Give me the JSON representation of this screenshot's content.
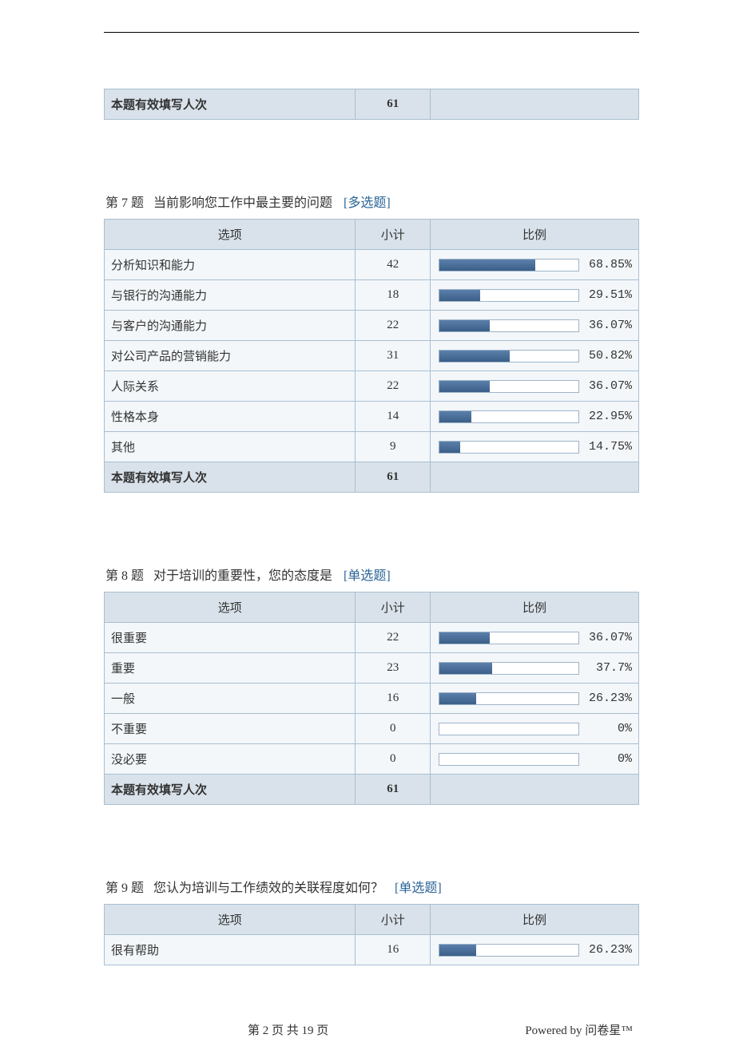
{
  "colors": {
    "header_bg": "#d9e2ea",
    "row_bg": "#f3f7fa",
    "border": "#a9bed1",
    "bar_fill_from": "#5a7fab",
    "bar_fill_to": "#3b5f87",
    "bar_track_border": "#9fb4c8",
    "link": "#2a6496",
    "text": "#333333"
  },
  "labels": {
    "col_option": "选项",
    "col_subtotal": "小计",
    "col_ratio": "比例",
    "valid_count_label": "本题有效填写人次",
    "page_info": "第 2 页 共 19 页",
    "powered_by": "Powered by 问卷星™"
  },
  "top_footer": {
    "label": "本题有效填写人次",
    "value": "61"
  },
  "questions": [
    {
      "id": "q7",
      "number": "第 7 题",
      "title": "当前影响您工作中最主要的问题",
      "type_label": "[多选题]",
      "valid_count": "61",
      "rows": [
        {
          "label": "分析知识和能力",
          "count": "42",
          "percent": 68.85,
          "percent_label": "68.85%"
        },
        {
          "label": "与银行的沟通能力",
          "count": "18",
          "percent": 29.51,
          "percent_label": "29.51%"
        },
        {
          "label": "与客户的沟通能力",
          "count": "22",
          "percent": 36.07,
          "percent_label": "36.07%"
        },
        {
          "label": "对公司产品的营销能力",
          "count": "31",
          "percent": 50.82,
          "percent_label": "50.82%"
        },
        {
          "label": "人际关系",
          "count": "22",
          "percent": 36.07,
          "percent_label": "36.07%"
        },
        {
          "label": "性格本身",
          "count": "14",
          "percent": 22.95,
          "percent_label": "22.95%"
        },
        {
          "label": "其他",
          "count": "9",
          "percent": 14.75,
          "percent_label": "14.75%"
        }
      ]
    },
    {
      "id": "q8",
      "number": "第 8 题",
      "title": "对于培训的重要性，您的态度是",
      "type_label": "[单选题]",
      "valid_count": "61",
      "rows": [
        {
          "label": "很重要",
          "count": "22",
          "percent": 36.07,
          "percent_label": "36.07%"
        },
        {
          "label": "重要",
          "count": "23",
          "percent": 37.7,
          "percent_label": "37.7%"
        },
        {
          "label": "一般",
          "count": "16",
          "percent": 26.23,
          "percent_label": "26.23%"
        },
        {
          "label": "不重要",
          "count": "0",
          "percent": 0,
          "percent_label": "0%"
        },
        {
          "label": "没必要",
          "count": "0",
          "percent": 0,
          "percent_label": "0%"
        }
      ]
    },
    {
      "id": "q9",
      "number": "第 9 题",
      "title": "您认为培训与工作绩效的关联程度如何？",
      "type_label": "[单选题]",
      "rows": [
        {
          "label": "很有帮助",
          "count": "16",
          "percent": 26.23,
          "percent_label": "26.23%"
        }
      ]
    }
  ]
}
